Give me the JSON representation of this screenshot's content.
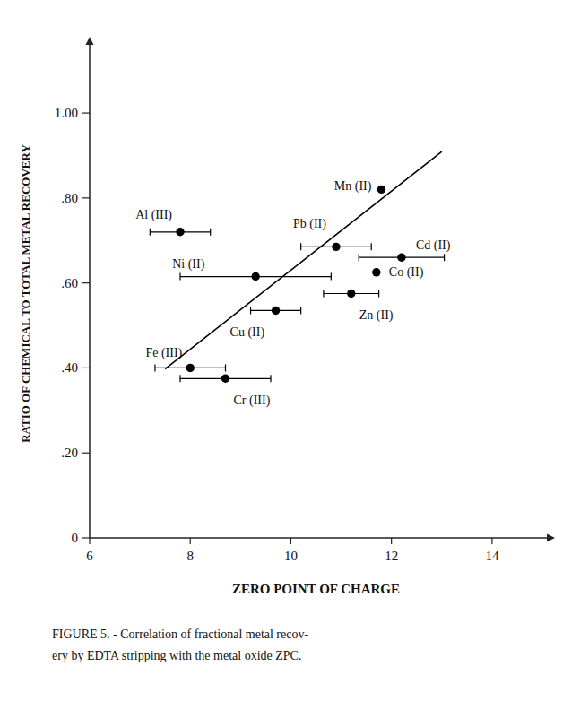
{
  "chart_data": {
    "type": "scatter",
    "xlabel": "ZERO POINT OF CHARGE",
    "ylabel": "RATIO OF CHEMICAL TO TOTAL METAL RECOVERY",
    "caption": [
      "FIGURE 5. - Correlation of fractional metal recov-",
      "ery by EDTA stripping with the metal oxide ZPC."
    ],
    "xlim": [
      6,
      15
    ],
    "ylim": [
      0,
      1.15
    ],
    "xticks": [
      6,
      8,
      10,
      12,
      14
    ],
    "yticks": [
      0,
      {
        "value": 0.2,
        "label": ".20"
      },
      {
        "value": 0.4,
        "label": ".40"
      },
      {
        "value": 0.6,
        "label": ".60"
      },
      {
        "value": 0.8,
        "label": ".80"
      },
      {
        "value": 1.0,
        "label": "1.00"
      }
    ],
    "series": [
      {
        "type": "scatter",
        "color": "black",
        "labels": [
          "Al (III)",
          "Fe (III)",
          "Cr (III)",
          "Ni (II)",
          "Cu (II)",
          "Pb (II)",
          "Zn (II)",
          "Co (II)",
          "Mn (II)",
          "Cd (II)"
        ],
        "x": [
          7.8,
          8.0,
          8.7,
          9.3,
          9.7,
          10.9,
          11.2,
          11.7,
          11.8,
          12.2
        ],
        "values": [
          0.72,
          0.4,
          0.375,
          0.615,
          0.535,
          0.685,
          0.575,
          0.625,
          0.82,
          0.66
        ],
        "xerr": [
          0.6,
          0.7,
          0.9,
          1.5,
          0.5,
          0.7,
          0.55,
          0.0,
          0.0,
          0.85
        ]
      },
      {
        "type": "line",
        "color": "black",
        "x": [
          7.5,
          13.0
        ],
        "values": [
          0.3975,
          0.909
        ]
      }
    ]
  }
}
